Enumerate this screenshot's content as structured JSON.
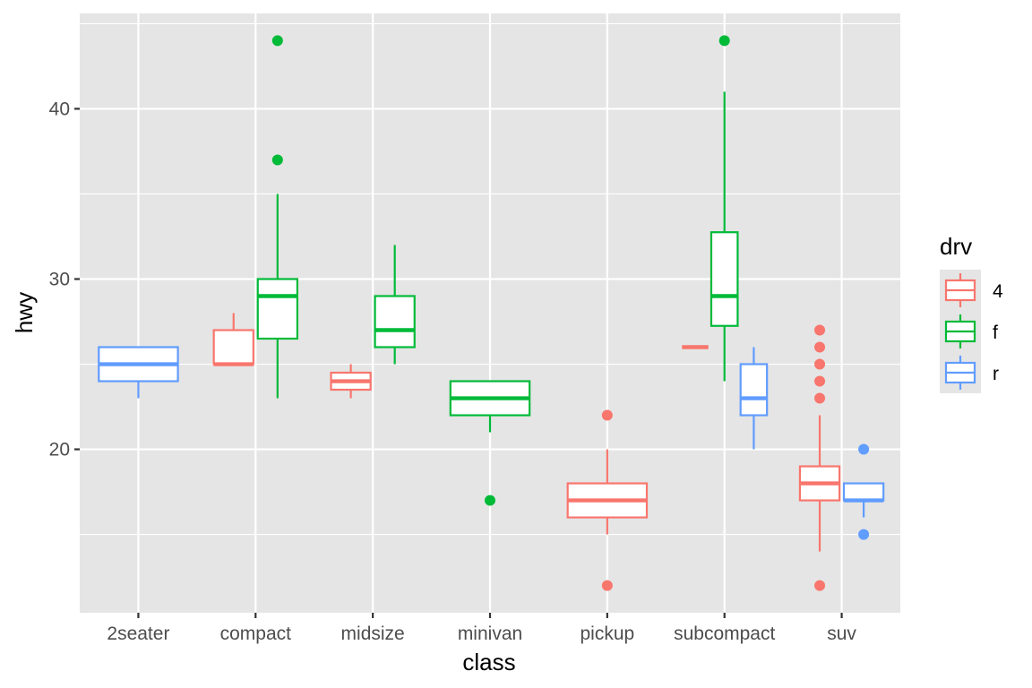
{
  "chart_data": {
    "type": "boxplot",
    "xlabel": "class",
    "ylabel": "hwy",
    "categories": [
      "2seater",
      "compact",
      "midsize",
      "minivan",
      "pickup",
      "subcompact",
      "suv"
    ],
    "yticks": [
      20,
      30,
      40
    ],
    "ylim": [
      10.4,
      45.6
    ],
    "grid": true,
    "legend": {
      "title": "drv",
      "position": "right",
      "entries": [
        "4",
        "f",
        "r"
      ]
    },
    "colors": {
      "4": "#f8766d",
      "f": "#00ba38",
      "r": "#619cff"
    },
    "series": [
      {
        "name": "4",
        "boxes": [
          {
            "category": "compact",
            "slot": 0,
            "slots": 2,
            "lower_whisker": 25,
            "q1": 25,
            "median": 25,
            "q3": 27,
            "upper_whisker": 28,
            "outliers": []
          },
          {
            "category": "midsize",
            "slot": 0,
            "slots": 2,
            "lower_whisker": 23,
            "q1": 23.5,
            "median": 24,
            "q3": 24.5,
            "upper_whisker": 25,
            "outliers": []
          },
          {
            "category": "pickup",
            "slot": 0,
            "slots": 1,
            "lower_whisker": 15,
            "q1": 16,
            "median": 17,
            "q3": 18,
            "upper_whisker": 20,
            "outliers": [
              12,
              22
            ]
          },
          {
            "category": "subcompact",
            "slot": 0,
            "slots": 3,
            "lower_whisker": 26,
            "q1": 26,
            "median": 26,
            "q3": 26,
            "upper_whisker": 26,
            "outliers": []
          },
          {
            "category": "suv",
            "slot": 0,
            "slots": 2,
            "lower_whisker": 14,
            "q1": 17,
            "median": 18,
            "q3": 19,
            "upper_whisker": 22,
            "outliers": [
              12,
              23,
              24,
              25,
              26,
              27
            ]
          }
        ]
      },
      {
        "name": "f",
        "boxes": [
          {
            "category": "compact",
            "slot": 1,
            "slots": 2,
            "lower_whisker": 23,
            "q1": 26.5,
            "median": 29,
            "q3": 30,
            "upper_whisker": 35,
            "outliers": [
              37,
              44
            ]
          },
          {
            "category": "midsize",
            "slot": 1,
            "slots": 2,
            "lower_whisker": 25,
            "q1": 26,
            "median": 27,
            "q3": 29,
            "upper_whisker": 32,
            "outliers": []
          },
          {
            "category": "minivan",
            "slot": 0,
            "slots": 1,
            "lower_whisker": 21,
            "q1": 22,
            "median": 23,
            "q3": 24,
            "upper_whisker": 24,
            "outliers": [
              17
            ]
          },
          {
            "category": "subcompact",
            "slot": 1,
            "slots": 3,
            "lower_whisker": 24,
            "q1": 27.25,
            "median": 29,
            "q3": 32.75,
            "upper_whisker": 41,
            "outliers": [
              44
            ]
          }
        ]
      },
      {
        "name": "r",
        "boxes": [
          {
            "category": "2seater",
            "slot": 0,
            "slots": 1,
            "lower_whisker": 23,
            "q1": 24,
            "median": 25,
            "q3": 26,
            "upper_whisker": 26,
            "outliers": []
          },
          {
            "category": "subcompact",
            "slot": 2,
            "slots": 3,
            "lower_whisker": 20,
            "q1": 22,
            "median": 23,
            "q3": 25,
            "upper_whisker": 26,
            "outliers": []
          },
          {
            "category": "suv",
            "slot": 1,
            "slots": 2,
            "lower_whisker": 16,
            "q1": 17,
            "median": 17,
            "q3": 18,
            "upper_whisker": 18,
            "outliers": [
              15,
              20
            ]
          }
        ]
      }
    ]
  }
}
